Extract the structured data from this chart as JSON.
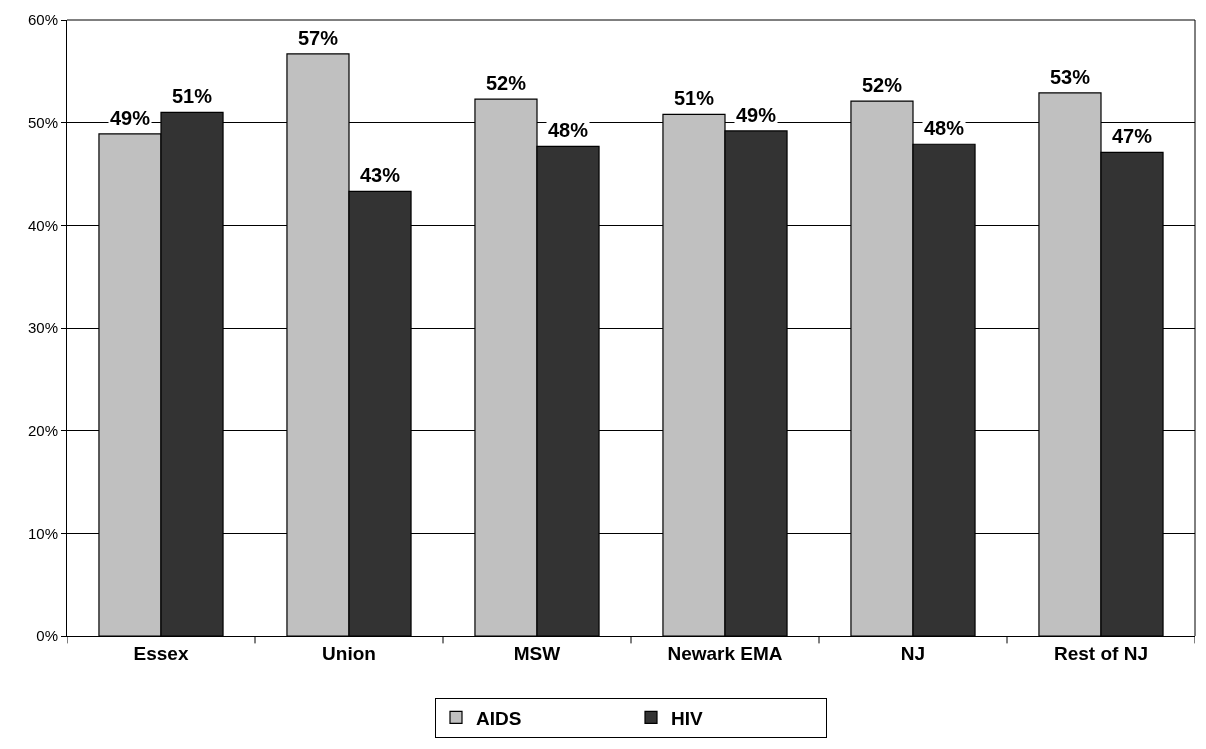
{
  "chart_data": {
    "type": "bar",
    "categories": [
      "Essex",
      "Union",
      "MSW",
      "Newark EMA",
      "NJ",
      "Rest of NJ"
    ],
    "series": [
      {
        "name": "AIDS",
        "color": "#c0c0c0",
        "values": [
          48.9,
          56.7,
          52.3,
          50.8,
          52.1,
          52.9
        ],
        "value_labels": [
          "49%",
          "57%",
          "52%",
          "51%",
          "52%",
          "53%"
        ]
      },
      {
        "name": "HIV",
        "color": "#333333",
        "values": [
          51.0,
          43.3,
          47.7,
          49.2,
          47.9,
          47.1
        ],
        "value_labels": [
          "51%",
          "43%",
          "48%",
          "49%",
          "48%",
          "47%"
        ]
      }
    ],
    "ylim": [
      0,
      60
    ],
    "yticks": [
      {
        "value": 0,
        "label": "0%"
      },
      {
        "value": 10,
        "label": "10%"
      },
      {
        "value": 20,
        "label": "20%"
      },
      {
        "value": 30,
        "label": "30%"
      },
      {
        "value": 40,
        "label": "40%"
      },
      {
        "value": 50,
        "label": "50%"
      },
      {
        "value": 60,
        "label": "60%"
      }
    ],
    "grid": "y",
    "legend": "bottom"
  }
}
